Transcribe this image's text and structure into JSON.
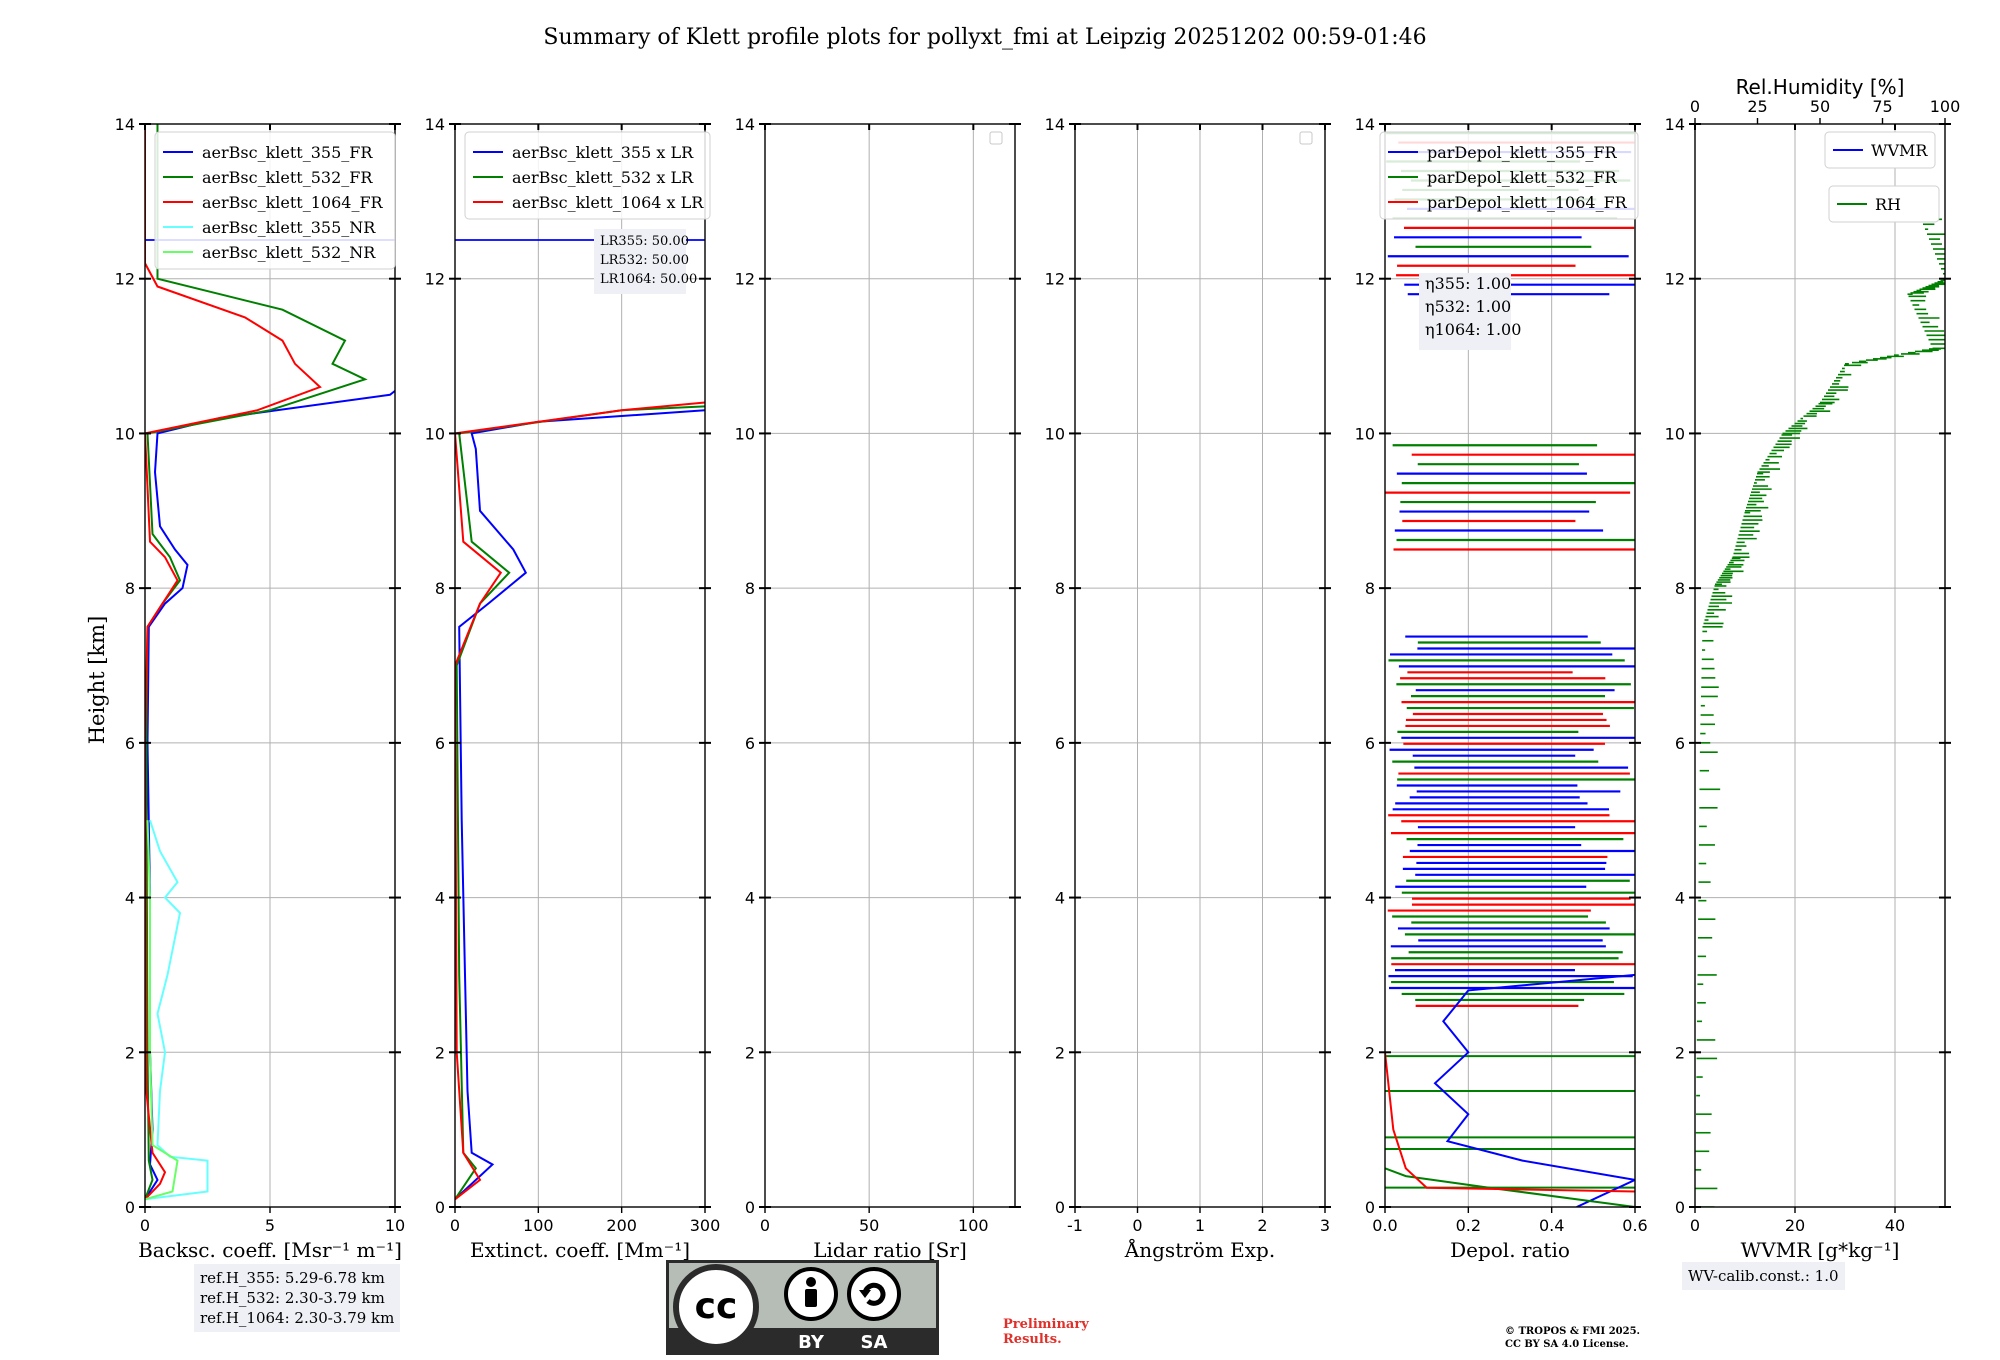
{
  "figure": {
    "title": "Summary of Klett profile plots for pollyxt_fmi at Leipzig 20251202 00:59-01:46",
    "ylabel": "Height [km]"
  },
  "chart_data": [
    {
      "type": "line",
      "xlabel": "Backsc. coeff. [Msr⁻¹ m⁻¹]",
      "xlim": [
        0,
        10
      ],
      "ylim": [
        0,
        14
      ],
      "xticks": [
        0,
        5,
        10
      ],
      "yticks": [
        0,
        2,
        4,
        6,
        8,
        10,
        12,
        14
      ],
      "legend": [
        "aerBsc_klett_355_FR",
        "aerBsc_klett_532_FR",
        "aerBsc_klett_1064_FR",
        "aerBsc_klett_355_NR",
        "aerBsc_klett_532_NR"
      ],
      "series": [
        {
          "name": "aerBsc_klett_355_FR",
          "color": "#0000ff",
          "points": [
            [
              0.0,
              0.1
            ],
            [
              0.5,
              0.35
            ],
            [
              0.2,
              0.55
            ],
            [
              0.3,
              1.0
            ],
            [
              0.2,
              2.0
            ],
            [
              0.2,
              4.0
            ],
            [
              0.1,
              6.0
            ],
            [
              0.15,
              7.5
            ],
            [
              0.8,
              7.8
            ],
            [
              1.5,
              8.0
            ],
            [
              1.7,
              8.3
            ],
            [
              1.2,
              8.5
            ],
            [
              0.6,
              8.8
            ],
            [
              0.4,
              9.5
            ],
            [
              0.5,
              10.0
            ],
            [
              3.0,
              10.2
            ],
            [
              9.8,
              10.5
            ],
            [
              10.0,
              10.55
            ]
          ]
        },
        {
          "name": "aerBsc_klett_532_FR",
          "color": "#008000",
          "points": [
            [
              0.0,
              0.1
            ],
            [
              0.3,
              0.35
            ],
            [
              0.15,
              0.6
            ],
            [
              0.1,
              2.0
            ],
            [
              0.05,
              6.0
            ],
            [
              0.1,
              7.5
            ],
            [
              0.7,
              7.8
            ],
            [
              1.4,
              8.1
            ],
            [
              1.0,
              8.4
            ],
            [
              0.3,
              8.7
            ],
            [
              0.1,
              10.0
            ],
            [
              5.0,
              10.3
            ],
            [
              8.8,
              10.7
            ],
            [
              7.5,
              10.9
            ],
            [
              8.0,
              11.2
            ],
            [
              5.5,
              11.6
            ],
            [
              3.0,
              11.8
            ],
            [
              0.5,
              12.0
            ],
            [
              0.5,
              13.0
            ],
            [
              0.5,
              14.0
            ]
          ]
        },
        {
          "name": "aerBsc_klett_1064_FR",
          "color": "#ff0000",
          "points": [
            [
              0.0,
              0.1
            ],
            [
              0.6,
              0.3
            ],
            [
              0.8,
              0.45
            ],
            [
              0.3,
              0.7
            ],
            [
              0.05,
              1.5
            ],
            [
              0.0,
              6.0
            ],
            [
              0.1,
              7.5
            ],
            [
              0.7,
              7.8
            ],
            [
              1.3,
              8.1
            ],
            [
              0.8,
              8.4
            ],
            [
              0.2,
              8.6
            ],
            [
              0.0,
              10.0
            ],
            [
              4.5,
              10.3
            ],
            [
              7.0,
              10.6
            ],
            [
              6.0,
              10.9
            ],
            [
              5.5,
              11.2
            ],
            [
              4.0,
              11.5
            ],
            [
              0.5,
              11.9
            ],
            [
              0.0,
              12.2
            ],
            [
              0.0,
              14.0
            ]
          ]
        },
        {
          "name": "aerBsc_klett_355_NR",
          "color": "#66ffff",
          "points": [
            [
              0.0,
              0.1
            ],
            [
              2.5,
              0.2
            ],
            [
              2.5,
              0.6
            ],
            [
              1.0,
              0.65
            ],
            [
              0.5,
              0.8
            ],
            [
              0.6,
              1.5
            ],
            [
              0.8,
              2.0
            ],
            [
              0.5,
              2.5
            ],
            [
              0.9,
              3.0
            ],
            [
              1.4,
              3.8
            ],
            [
              0.8,
              4.0
            ],
            [
              1.3,
              4.2
            ],
            [
              0.6,
              4.6
            ],
            [
              0.2,
              5.0
            ]
          ]
        },
        {
          "name": "aerBsc_klett_532_NR",
          "color": "#66ff66",
          "points": [
            [
              0.0,
              0.1
            ],
            [
              1.1,
              0.2
            ],
            [
              1.3,
              0.6
            ],
            [
              0.3,
              0.8
            ],
            [
              0.2,
              2.0
            ],
            [
              0.2,
              4.0
            ],
            [
              0.1,
              5.0
            ]
          ]
        }
      ],
      "hline": {
        "y": 12.5,
        "color": "#0000ff"
      }
    },
    {
      "type": "line",
      "xlabel": "Extinct. coeff. [Mm⁻¹]",
      "xlim": [
        0,
        300
      ],
      "ylim": [
        0,
        14
      ],
      "xticks": [
        0,
        100,
        200,
        300
      ],
      "yticks": [
        0,
        2,
        4,
        6,
        8,
        10,
        12,
        14
      ],
      "legend": [
        "aerBsc_klett_355 x LR",
        "aerBsc_klett_532 x LR",
        "aerBsc_klett_1064 x LR"
      ],
      "series": [
        {
          "name": "aerBsc_klett_355 x LR",
          "color": "#0000ff",
          "points": [
            [
              0,
              0.1
            ],
            [
              45,
              0.55
            ],
            [
              20,
              0.7
            ],
            [
              15,
              1.5
            ],
            [
              12,
              3.0
            ],
            [
              8,
              5.0
            ],
            [
              5,
              7.5
            ],
            [
              40,
              7.8
            ],
            [
              85,
              8.2
            ],
            [
              70,
              8.5
            ],
            [
              30,
              9.0
            ],
            [
              25,
              9.8
            ],
            [
              20,
              10.0
            ],
            [
              100,
              10.15
            ],
            [
              300,
              10.3
            ]
          ]
        },
        {
          "name": "aerBsc_klett_532 x LR",
          "color": "#008000",
          "points": [
            [
              0,
              0.1
            ],
            [
              25,
              0.5
            ],
            [
              10,
              0.7
            ],
            [
              5,
              3.0
            ],
            [
              2,
              7.0
            ],
            [
              30,
              7.8
            ],
            [
              65,
              8.2
            ],
            [
              20,
              8.6
            ],
            [
              5,
              10.0
            ],
            [
              200,
              10.3
            ],
            [
              300,
              10.35
            ]
          ]
        },
        {
          "name": "aerBsc_klett_1064 x LR",
          "color": "#ff0000",
          "points": [
            [
              0,
              0.1
            ],
            [
              30,
              0.35
            ],
            [
              10,
              0.7
            ],
            [
              2,
              2.0
            ],
            [
              0,
              7.0
            ],
            [
              30,
              7.8
            ],
            [
              55,
              8.2
            ],
            [
              10,
              8.6
            ],
            [
              0,
              10.0
            ],
            [
              200,
              10.3
            ],
            [
              300,
              10.4
            ]
          ]
        }
      ],
      "hline": {
        "y": 12.5,
        "color": "#0000ff"
      },
      "annotation": [
        "LR355: 50.00",
        "LR532: 50.00",
        "LR1064: 50.00"
      ]
    },
    {
      "type": "line",
      "xlabel": "Lidar ratio [Sr]",
      "xlim": [
        0,
        120
      ],
      "ylim": [
        0,
        14
      ],
      "xticks": [
        0,
        50,
        100
      ],
      "yticks": [
        0,
        2,
        4,
        6,
        8,
        10,
        12,
        14
      ],
      "series": []
    },
    {
      "type": "line",
      "xlabel": "Ångström Exp.",
      "xlim": [
        -1,
        3
      ],
      "ylim": [
        0,
        14
      ],
      "xticks": [
        -1,
        0,
        1,
        2,
        3
      ],
      "yticks": [
        0,
        2,
        4,
        6,
        8,
        10,
        12,
        14
      ],
      "series": []
    },
    {
      "type": "line",
      "xlabel": "Depol. ratio",
      "xlim": [
        0,
        0.6
      ],
      "ylim": [
        0,
        14
      ],
      "xticks": [
        0.0,
        0.2,
        0.4,
        0.6
      ],
      "yticks": [
        0,
        2,
        4,
        6,
        8,
        10,
        12,
        14
      ],
      "legend": [
        "parDepol_klett_355_FR",
        "parDepol_klett_532_FR",
        "parDepol_klett_1064_FR"
      ],
      "series": [
        {
          "name": "parDepol_klett_355_FR",
          "color": "#0000ff",
          "points": [
            [
              0.46,
              0.0
            ],
            [
              0.6,
              0.35
            ],
            [
              0.33,
              0.6
            ],
            [
              0.15,
              0.85
            ],
            [
              0.2,
              1.2
            ],
            [
              0.12,
              1.6
            ],
            [
              0.2,
              2.0
            ],
            [
              0.14,
              2.4
            ],
            [
              0.2,
              2.8
            ],
            [
              0.6,
              3.0
            ]
          ]
        },
        {
          "name": "parDepol_klett_532_FR",
          "color": "#008000",
          "points": [
            [
              0.6,
              0.0
            ],
            [
              0.25,
              0.25
            ],
            [
              0.05,
              0.4
            ],
            [
              0.0,
              0.5
            ]
          ]
        },
        {
          "name": "parDepol_klett_1064_FR",
          "color": "#ff0000",
          "points": [
            [
              0.6,
              0.2
            ],
            [
              0.1,
              0.25
            ],
            [
              0.05,
              0.5
            ],
            [
              0.02,
              1.0
            ],
            [
              0.0,
              2.0
            ]
          ]
        }
      ],
      "annotation": [
        "η355: 1.00",
        "η532: 1.00",
        "η1064: 1.00"
      ]
    },
    {
      "type": "line",
      "xlabel": "WVMR [g*kg⁻¹]",
      "x2label": "Rel.Humidity [%]",
      "xlim": [
        0,
        50
      ],
      "x2lim": [
        0,
        100
      ],
      "ylim": [
        0,
        14
      ],
      "xticks": [
        0,
        20,
        40
      ],
      "x2ticks": [
        0,
        25,
        50,
        75,
        100
      ],
      "yticks": [
        0,
        2,
        4,
        6,
        8,
        10,
        12,
        14
      ],
      "legend": [
        "WVMR",
        "RH"
      ],
      "series": [
        {
          "name": "WVMR",
          "color": "#0000ff",
          "points": []
        },
        {
          "name": "RH",
          "color": "#008000",
          "points": [
            [
              0,
              0
            ],
            [
              1,
              3
            ],
            [
              2,
              6
            ],
            [
              3,
              7.5
            ],
            [
              8,
              8.05
            ],
            [
              15,
              8.4
            ],
            [
              20,
              9.0
            ],
            [
              25,
              9.5
            ],
            [
              35,
              10.0
            ],
            [
              50,
              10.4
            ],
            [
              60,
              10.9
            ],
            [
              95,
              11.1
            ],
            [
              85,
              11.8
            ],
            [
              100,
              12.0
            ],
            [
              90,
              12.8
            ]
          ]
        }
      ]
    }
  ],
  "annotations": {
    "ref_heights": [
      "ref.H_355: 5.29-6.78 km",
      "ref.H_532: 2.30-3.79 km",
      "ref.H_1064: 2.30-3.79 km"
    ],
    "wv_calib": "WV-calib.const.: 1.0",
    "preliminary": [
      "Preliminary",
      "Results."
    ],
    "copyright": [
      "© TROPOS & FMI 2025.",
      "CC BY SA 4.0 License."
    ],
    "cc_badge": {
      "label_by": "BY",
      "label_sa": "SA",
      "cc_text": "cc"
    }
  },
  "colors": {
    "blue": "#0000ff",
    "green": "#008000",
    "red": "#ff0000",
    "cyan": "#66ffff",
    "lightgreen": "#66ff66",
    "grid": "#b0b0b0",
    "badge_bg": "#b6bcb6",
    "badge_dark": "#2b2b2b"
  }
}
